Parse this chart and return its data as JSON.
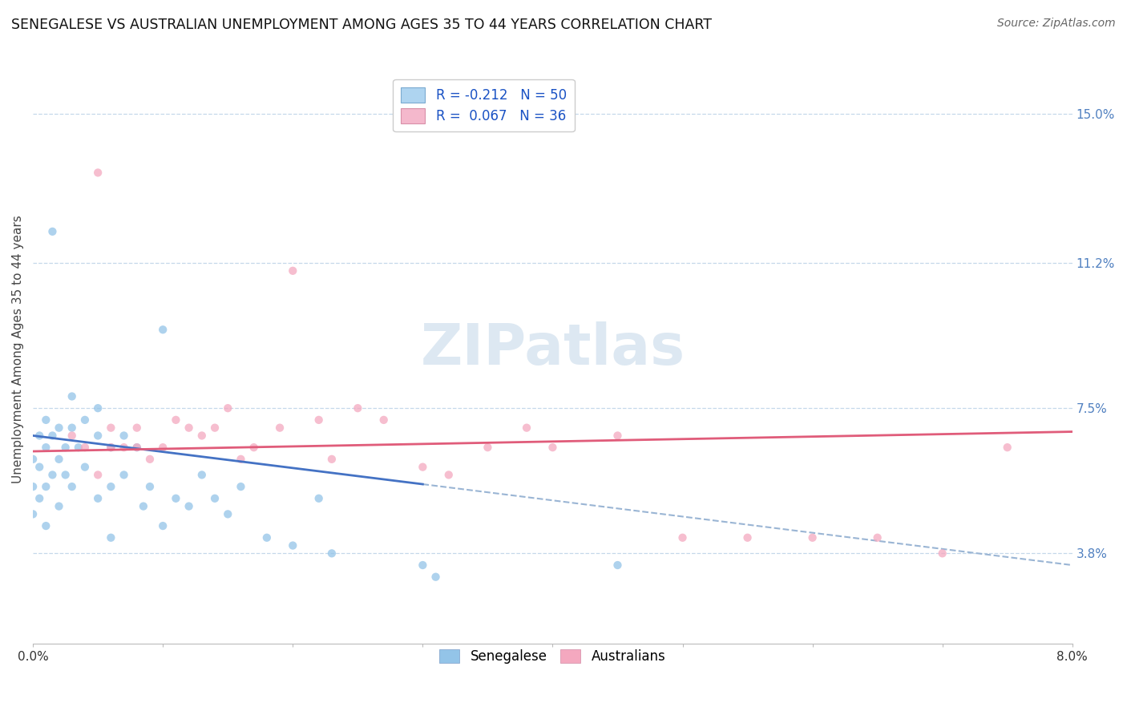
{
  "title": "SENEGALESE VS AUSTRALIAN UNEMPLOYMENT AMONG AGES 35 TO 44 YEARS CORRELATION CHART",
  "source": "Source: ZipAtlas.com",
  "ylabel_label": "Unemployment Among Ages 35 to 44 years",
  "xmin": 0.0,
  "xmax": 8.0,
  "ymin": 1.5,
  "ymax": 16.5,
  "ytick_labels": [
    "3.8%",
    "7.5%",
    "11.2%",
    "15.0%"
  ],
  "ytick_values": [
    3.8,
    7.5,
    11.2,
    15.0
  ],
  "legend_r1": "R = -0.212",
  "legend_n1": "N = 50",
  "legend_r2": "R =  0.067",
  "legend_n2": "N = 36",
  "watermark": "ZIPatlas",
  "sen_x": [
    0.0,
    0.0,
    0.0,
    0.05,
    0.05,
    0.05,
    0.1,
    0.1,
    0.1,
    0.1,
    0.15,
    0.15,
    0.2,
    0.2,
    0.2,
    0.25,
    0.25,
    0.3,
    0.3,
    0.3,
    0.35,
    0.4,
    0.4,
    0.5,
    0.5,
    0.5,
    0.6,
    0.6,
    0.7,
    0.7,
    0.8,
    0.85,
    0.9,
    1.0,
    1.0,
    1.1,
    1.2,
    1.3,
    1.4,
    1.5,
    1.6,
    1.8,
    2.0,
    2.2,
    2.3,
    3.0,
    3.1,
    4.5,
    0.15,
    0.6
  ],
  "sen_y": [
    6.2,
    5.5,
    4.8,
    6.8,
    6.0,
    5.2,
    7.2,
    6.5,
    5.5,
    4.5,
    6.8,
    5.8,
    7.0,
    6.2,
    5.0,
    6.5,
    5.8,
    7.8,
    7.0,
    5.5,
    6.5,
    7.2,
    6.0,
    7.5,
    6.8,
    5.2,
    6.5,
    5.5,
    6.8,
    5.8,
    6.5,
    5.0,
    5.5,
    9.5,
    4.5,
    5.2,
    5.0,
    5.8,
    5.2,
    4.8,
    5.5,
    4.2,
    4.0,
    5.2,
    3.8,
    3.5,
    3.2,
    3.5,
    12.0,
    4.2
  ],
  "aus_x": [
    0.3,
    0.5,
    0.6,
    0.7,
    0.8,
    0.9,
    1.0,
    1.1,
    1.2,
    1.3,
    1.4,
    1.5,
    1.6,
    1.7,
    1.9,
    2.0,
    2.2,
    2.5,
    2.7,
    3.0,
    3.2,
    3.5,
    3.8,
    4.0,
    4.5,
    5.0,
    5.5,
    6.0,
    6.5,
    7.0,
    7.5,
    0.4,
    0.5,
    0.6,
    0.8,
    2.3
  ],
  "aus_y": [
    6.8,
    13.5,
    7.0,
    6.5,
    6.5,
    6.2,
    6.5,
    7.2,
    7.0,
    6.8,
    7.0,
    7.5,
    6.2,
    6.5,
    7.0,
    11.0,
    7.2,
    7.5,
    7.2,
    6.0,
    5.8,
    6.5,
    7.0,
    6.5,
    6.8,
    4.2,
    4.2,
    4.2,
    4.2,
    3.8,
    6.5,
    6.5,
    5.8,
    6.5,
    7.0,
    6.2
  ],
  "dot_color_sen": "#93c4e8",
  "dot_color_aus": "#f4a8bf",
  "trend_color_sen": "#4472c4",
  "trend_color_aus": "#e05c7a",
  "trend_dash_color": "#9ab5d4",
  "grid_color": "#c5d8ea",
  "bg_color": "#ffffff",
  "title_fontsize": 12.5,
  "source_fontsize": 10,
  "tick_fontsize": 11,
  "ylabel_fontsize": 11,
  "legend_fontsize": 12,
  "watermark_fontsize": 52,
  "watermark_color": "#dde8f2",
  "dot_size": 55,
  "dot_alpha": 0.75,
  "solid_end_x": 3.0,
  "trend_linewidth": 2.0,
  "dash_linewidth": 1.5
}
